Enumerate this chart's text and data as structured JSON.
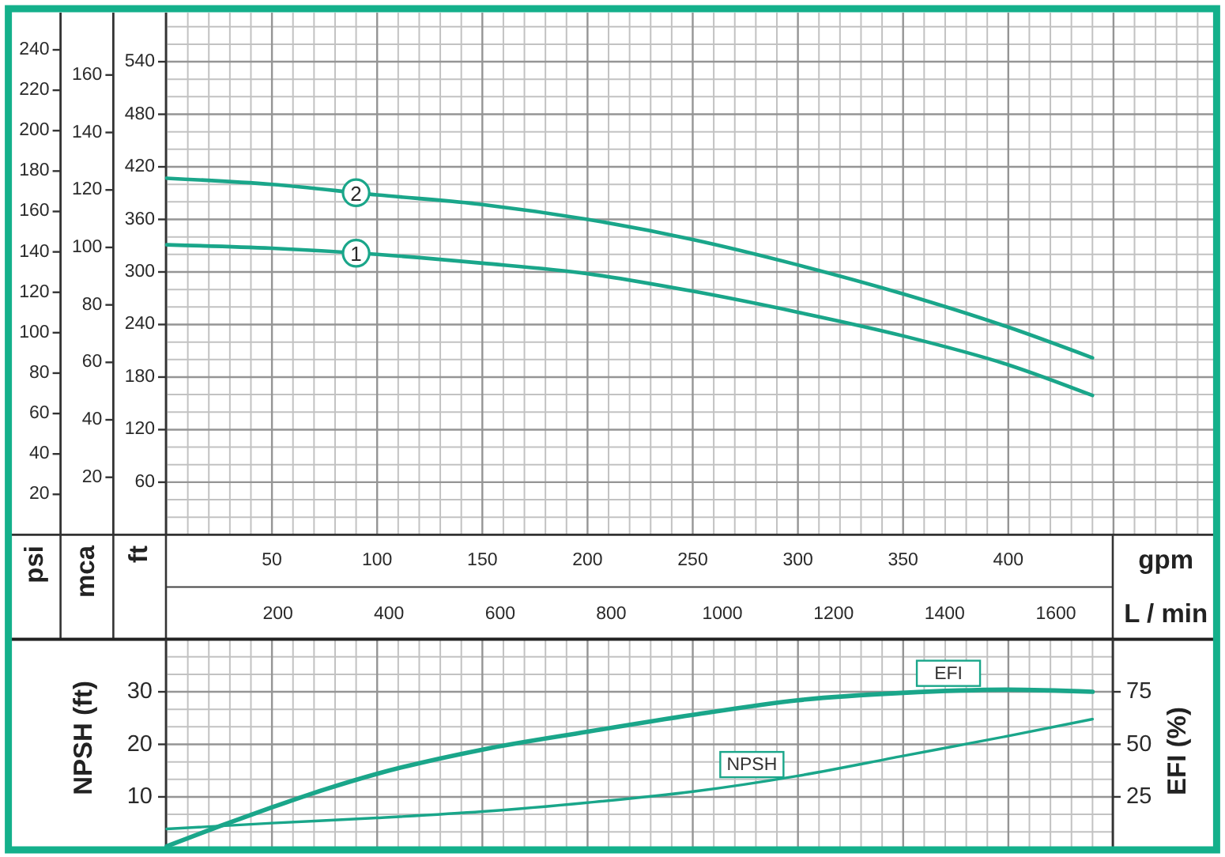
{
  "chart_data": [
    {
      "type": "line",
      "x": [
        0,
        50,
        100,
        150,
        200,
        250,
        300,
        350,
        400,
        440
      ],
      "series": [
        {
          "name": "1",
          "color": "#1aa68a",
          "values": [
            331,
            327,
            320,
            310,
            298,
            278,
            254,
            227,
            194,
            159
          ]
        },
        {
          "name": "2",
          "color": "#1aa68a",
          "values": [
            407,
            400,
            388,
            377,
            360,
            337,
            308,
            275,
            237,
            202
          ]
        }
      ],
      "xlabel": "gpm",
      "x2label": "L / min",
      "ylabel": "ft",
      "y2label": "mca",
      "y3label": "psi",
      "xlim": [
        0,
        500
      ],
      "xticks": [
        50,
        100,
        150,
        200,
        250,
        300,
        350,
        400,
        {
          "value": 450,
          "label": null
        }
      ],
      "x2lim": [
        0,
        1893
      ],
      "x2ticks": [
        200,
        400,
        600,
        800,
        1000,
        1200,
        1400,
        1600
      ],
      "ylim": [
        0,
        596
      ],
      "yticks": [
        60,
        120,
        180,
        240,
        300,
        360,
        420,
        480,
        540
      ],
      "y2lim": [
        0,
        181.7
      ],
      "y2ticks": [
        20,
        40,
        60,
        80,
        100,
        120,
        140,
        160
      ],
      "y3lim": [
        0,
        258.4
      ],
      "y3ticks": [
        20,
        40,
        60,
        80,
        100,
        120,
        140,
        160,
        180,
        200,
        220,
        240
      ],
      "grid": true
    },
    {
      "type": "line",
      "x": [
        0,
        50,
        100,
        150,
        200,
        250,
        300,
        350,
        400,
        440
      ],
      "series": [
        {
          "name": "NPSH",
          "color": "#1aa68a",
          "values": [
            3.9,
            5,
            6,
            7.2,
            8.9,
            11,
            14,
            17.8,
            21.6,
            24.8
          ]
        },
        {
          "name": "EFI",
          "color": "#1aa68a",
          "axis": "y2",
          "x": [
            0,
            25,
            50,
            75,
            100,
            150,
            200,
            250,
            300,
            350,
            400,
            440
          ],
          "values": [
            1.5,
            11,
            20,
            28.5,
            36,
            47.5,
            56,
            64,
            71,
            74.5,
            76,
            75
          ]
        }
      ],
      "ylabel": "NPSH (ft)",
      "y2label": "EFI (%)",
      "xlim": [
        0,
        450
      ],
      "xticks": [
        50,
        100,
        150,
        200,
        250,
        300,
        350,
        400
      ],
      "ylim": [
        0,
        40
      ],
      "yticks": [
        10,
        20,
        30
      ],
      "y2lim": [
        0,
        100
      ],
      "y2ticks": [
        25,
        50,
        75
      ],
      "tick_labels": "y",
      "grid": true
    }
  ]
}
